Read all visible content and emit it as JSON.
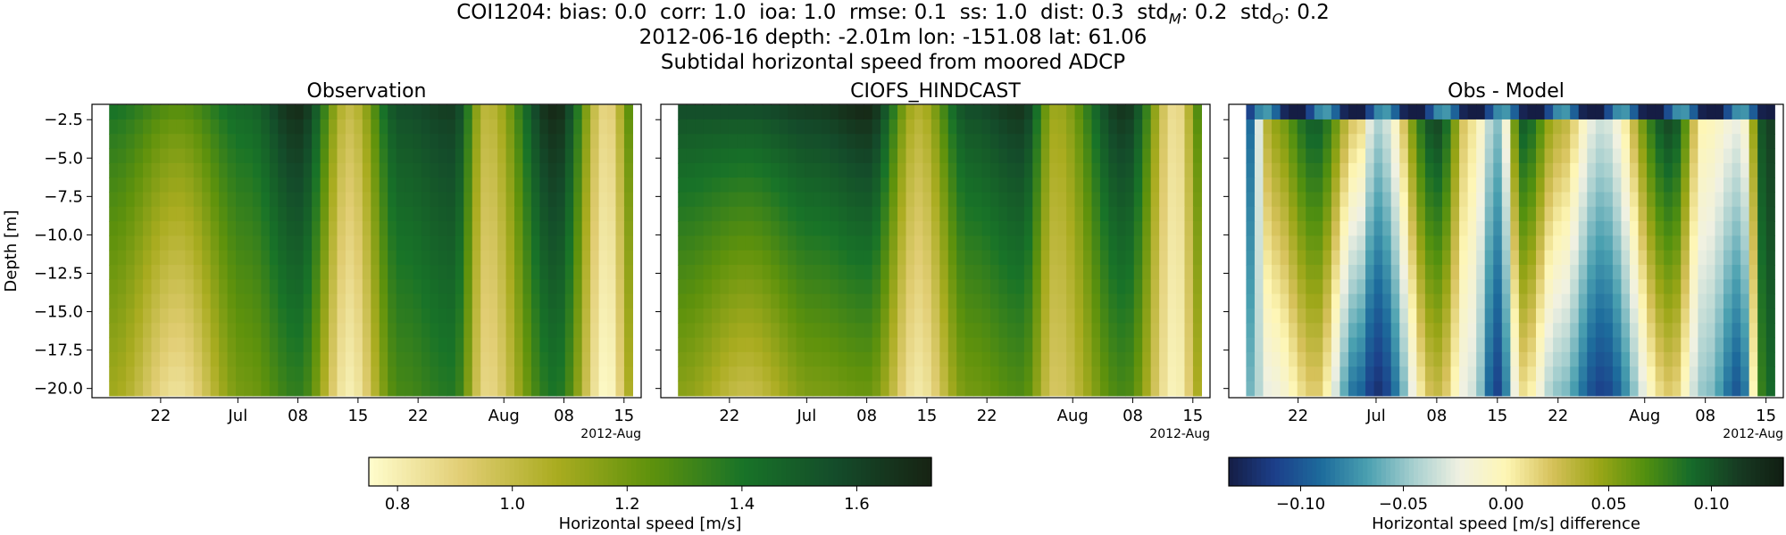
{
  "figure": {
    "title_lines": [
      "COI1204: bias: 0.0  corr: 1.0  ioa: 1.0  rmse: 0.1  ss: 1.0  dist: 0.3  std",
      "2012-06-16 depth: -2.01m lon: -151.08 lat: 61.06",
      "Subtidal horizontal speed from moored ADCP"
    ],
    "stats": [
      {
        "key": "bias",
        "value": "0.0"
      },
      {
        "key": "corr",
        "value": "1.0"
      },
      {
        "key": "ioa",
        "value": "1.0"
      },
      {
        "key": "rmse",
        "value": "0.1"
      },
      {
        "key": "ss",
        "value": "1.0"
      },
      {
        "key": "dist",
        "value": "0.3"
      },
      {
        "key": "stdM",
        "value": "0.2"
      },
      {
        "key": "stdO",
        "value": "0.2"
      }
    ],
    "station": "COI1204"
  },
  "chart_data": [
    {
      "type": "heatmap",
      "title": "Observation",
      "ylabel": "Depth [m]",
      "xlabel": "",
      "x_ticks": [
        "22",
        "Jul",
        "08",
        "15",
        "22",
        "Aug",
        "08",
        "15"
      ],
      "x_offset_label": "2012-Aug",
      "x_range": [
        "2012-06-16",
        "2012-08-17"
      ],
      "y_ticks": [
        -2.5,
        -5.0,
        -7.5,
        -10.0,
        -12.5,
        -15.0,
        -17.5,
        -20.0
      ],
      "ylim": [
        -20.6,
        -1.5
      ],
      "depth_range": [
        -20.0,
        -2.01
      ],
      "colormap": "speed",
      "clim": [
        0.75,
        1.73
      ],
      "speed_peaks": [
        {
          "date": "2012-06-16",
          "surface": 1.4,
          "bottom": 1.1
        },
        {
          "date": "2012-06-24",
          "surface": 1.25,
          "bottom": 0.85
        },
        {
          "date": "2012-07-02",
          "surface": 1.45,
          "bottom": 1.2
        },
        {
          "date": "2012-07-08",
          "surface": 1.68,
          "bottom": 1.35
        },
        {
          "date": "2012-07-14",
          "surface": 1.0,
          "bottom": 0.8
        },
        {
          "date": "2012-07-20",
          "surface": 1.55,
          "bottom": 1.3
        },
        {
          "date": "2012-07-26",
          "surface": 1.62,
          "bottom": 1.38
        },
        {
          "date": "2012-07-30",
          "surface": 1.02,
          "bottom": 0.88
        },
        {
          "date": "2012-08-07",
          "surface": 1.7,
          "bottom": 1.4
        },
        {
          "date": "2012-08-13",
          "surface": 0.88,
          "bottom": 0.76
        },
        {
          "date": "2012-08-17",
          "surface": 1.4,
          "bottom": 1.2
        }
      ]
    },
    {
      "type": "heatmap",
      "title": "CIOFS_HINDCAST",
      "ylabel": "",
      "xlabel": "",
      "x_ticks": [
        "22",
        "Jul",
        "08",
        "15",
        "22",
        "Aug",
        "08",
        "15"
      ],
      "x_offset_label": "2012-Aug",
      "x_range": [
        "2012-06-16",
        "2012-08-17"
      ],
      "colormap": "speed",
      "clim": [
        0.75,
        1.73
      ],
      "speed_peaks": [
        {
          "date": "2012-06-16",
          "surface": 1.55,
          "bottom": 1.15
        },
        {
          "date": "2012-06-24",
          "surface": 1.55,
          "bottom": 1.0
        },
        {
          "date": "2012-07-02",
          "surface": 1.62,
          "bottom": 1.18
        },
        {
          "date": "2012-07-08",
          "surface": 1.7,
          "bottom": 1.22
        },
        {
          "date": "2012-07-14",
          "surface": 1.05,
          "bottom": 0.82
        },
        {
          "date": "2012-07-20",
          "surface": 1.55,
          "bottom": 1.2
        },
        {
          "date": "2012-07-26",
          "surface": 1.65,
          "bottom": 1.28
        },
        {
          "date": "2012-07-30",
          "surface": 1.1,
          "bottom": 0.95
        },
        {
          "date": "2012-08-07",
          "surface": 1.65,
          "bottom": 1.3
        },
        {
          "date": "2012-08-13",
          "surface": 0.85,
          "bottom": 0.78
        },
        {
          "date": "2012-08-17",
          "surface": 1.45,
          "bottom": 1.2
        }
      ]
    },
    {
      "type": "heatmap",
      "title": "Obs - Model",
      "ylabel": "",
      "xlabel": "",
      "x_ticks": [
        "22",
        "Jul",
        "08",
        "15",
        "22",
        "Aug",
        "08",
        "15"
      ],
      "x_offset_label": "2012-Aug",
      "x_range": [
        "2012-06-16",
        "2012-08-17"
      ],
      "colormap": "diff",
      "clim": [
        -0.135,
        0.135
      ],
      "diff_peaks": [
        {
          "date": "2012-06-16",
          "surface": -0.1,
          "bottom": -0.06
        },
        {
          "date": "2012-06-19",
          "surface": 0.05,
          "bottom": -0.02
        },
        {
          "date": "2012-06-24",
          "surface": 0.1,
          "bottom": 0.02
        },
        {
          "date": "2012-06-29",
          "surface": 0.02,
          "bottom": -0.09
        },
        {
          "date": "2012-07-01",
          "surface": -0.04,
          "bottom": -0.12
        },
        {
          "date": "2012-07-08",
          "surface": 0.11,
          "bottom": 0.03
        },
        {
          "date": "2012-07-12",
          "surface": 0.01,
          "bottom": -0.03
        },
        {
          "date": "2012-07-15",
          "surface": -0.05,
          "bottom": -0.11
        },
        {
          "date": "2012-07-18",
          "surface": 0.1,
          "bottom": 0.01
        },
        {
          "date": "2012-07-22",
          "surface": 0.04,
          "bottom": -0.05
        },
        {
          "date": "2012-07-27",
          "surface": -0.03,
          "bottom": -0.11
        },
        {
          "date": "2012-08-04",
          "surface": 0.11,
          "bottom": 0.02
        },
        {
          "date": "2012-08-08",
          "surface": 0.0,
          "bottom": -0.05
        },
        {
          "date": "2012-08-12",
          "surface": -0.02,
          "bottom": -0.1
        },
        {
          "date": "2012-08-15",
          "surface": 0.11,
          "bottom": 0.09
        },
        {
          "date": "2012-08-17",
          "surface": 0.12,
          "bottom": 0.1
        }
      ]
    }
  ],
  "colorbars": [
    {
      "label": "Horizontal speed [m/s]",
      "ticks": [
        "0.8",
        "1.0",
        "1.2",
        "1.4",
        "1.6"
      ],
      "tick_values": [
        0.8,
        1.0,
        1.2,
        1.4,
        1.6
      ],
      "clim": [
        0.75,
        1.73
      ],
      "colormap": "speed"
    },
    {
      "label": "Horizontal speed [m/s] difference",
      "ticks": [
        "−0.10",
        "−0.05",
        "0.00",
        "0.05",
        "0.10"
      ],
      "tick_values": [
        -0.1,
        -0.05,
        0.0,
        0.05,
        0.1
      ],
      "clim": [
        -0.135,
        0.135
      ],
      "colormap": "diff"
    }
  ],
  "colormaps": {
    "speed": [
      "#fffdcd",
      "#e1cd73",
      "#aaac20",
      "#5f920c",
      "#187328",
      "#144b2a",
      "#172313"
    ],
    "diff": [
      "#151d44",
      "#1c3f8a",
      "#1d6b9c",
      "#4aa0b0",
      "#a7cfcf",
      "#f0f1e2",
      "#fef6b5",
      "#d6c15a",
      "#9ba617",
      "#52900f",
      "#166b2a",
      "#173c23",
      "#111d12"
    ]
  }
}
